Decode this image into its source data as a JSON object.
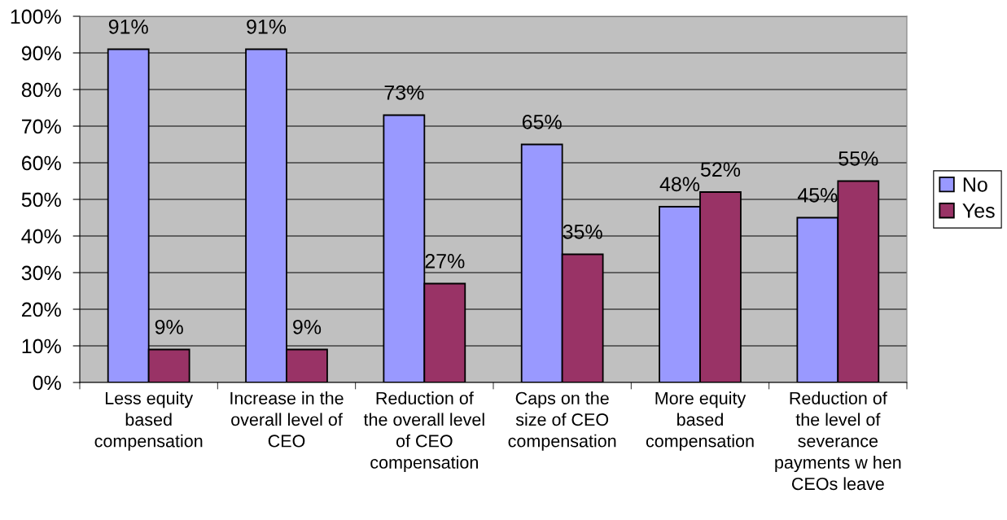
{
  "chart_data": {
    "type": "bar",
    "categories": [
      "Less equity\nbased\ncompensation",
      "Increase in the\noverall level of\nCEO",
      "Reduction of\nthe overall level\nof CEO\ncompensation",
      "Caps on the\nsize of CEO\ncompensation",
      "More equity\nbased\ncompensation",
      "Reduction of\nthe level of\nseverance\npayments w hen\nCEOs leave"
    ],
    "series": [
      {
        "name": "No",
        "color": "#9999ff",
        "values": [
          91,
          91,
          73,
          65,
          48,
          45
        ],
        "value_labels": [
          "91%",
          "91%",
          "73%",
          "65%",
          "48%",
          "45%"
        ]
      },
      {
        "name": "Yes",
        "color": "#993366",
        "values": [
          9,
          9,
          27,
          35,
          52,
          55
        ],
        "value_labels": [
          "9%",
          "9%",
          "27%",
          "35%",
          "52%",
          "55%"
        ]
      }
    ],
    "ylim": [
      0,
      100
    ],
    "yticks": [
      {
        "value": 0,
        "label": "0%"
      },
      {
        "value": 10,
        "label": "10%"
      },
      {
        "value": 20,
        "label": "20%"
      },
      {
        "value": 30,
        "label": "30%"
      },
      {
        "value": 40,
        "label": "40%"
      },
      {
        "value": 50,
        "label": "50%"
      },
      {
        "value": 60,
        "label": "60%"
      },
      {
        "value": 70,
        "label": "70%"
      },
      {
        "value": 80,
        "label": "80%"
      },
      {
        "value": 90,
        "label": "90%"
      },
      {
        "value": 100,
        "label": "100%"
      }
    ],
    "grid": "y",
    "legend": "right"
  }
}
